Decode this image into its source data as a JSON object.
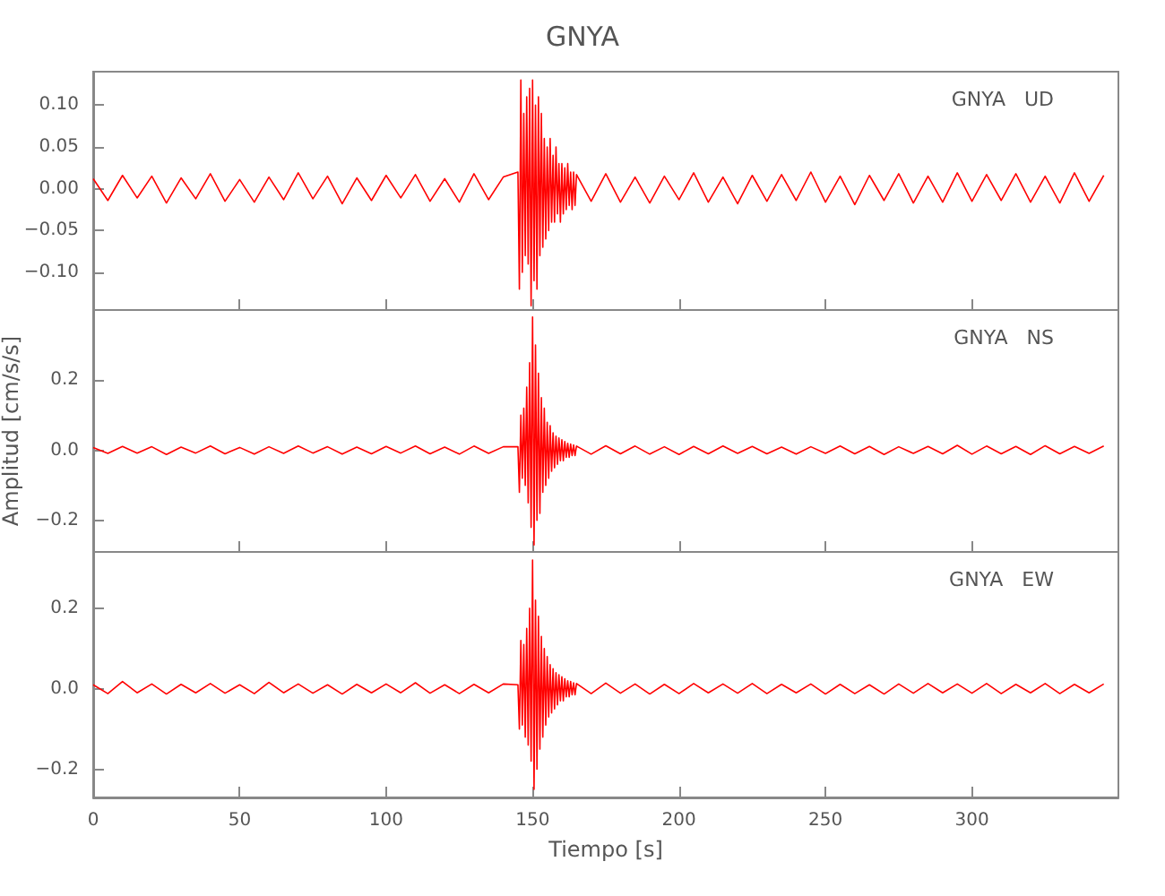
{
  "chart_data": [
    {
      "type": "line",
      "title": "GNYA",
      "annotations": [
        "GNYA   UD"
      ],
      "xlim": [
        0,
        350
      ],
      "ylim": [
        -0.145,
        0.14
      ],
      "yticks": [
        {
          "value": -0.1,
          "label": "−0.10"
        },
        {
          "value": -0.05,
          "label": "−0.05"
        },
        {
          "value": 0,
          "label": "0.00"
        },
        {
          "value": 0.05,
          "label": "0.05"
        },
        {
          "value": 0.1,
          "label": "0.10"
        }
      ],
      "xticks": [
        0,
        50,
        100,
        150,
        200,
        250,
        300
      ],
      "tick_labels": "y",
      "grid": false,
      "marker": "none",
      "line_style": "solid",
      "x": [
        0,
        5,
        10,
        15,
        20,
        25,
        30,
        35,
        40,
        45,
        50,
        55,
        60,
        65,
        70,
        75,
        80,
        85,
        90,
        95,
        100,
        105,
        110,
        115,
        120,
        125,
        130,
        135,
        140,
        145,
        145.5,
        146,
        146.5,
        147,
        147.5,
        148,
        148.5,
        149,
        149.5,
        150,
        150.5,
        151,
        151.5,
        152,
        152.5,
        153,
        153.5,
        154,
        154.5,
        155,
        155.5,
        156,
        156.5,
        157,
        157.5,
        158,
        158.5,
        159,
        159.5,
        160,
        160.5,
        161,
        161.5,
        162,
        162.5,
        163,
        163.5,
        164,
        164.5,
        165,
        170,
        175,
        180,
        185,
        190,
        195,
        200,
        205,
        210,
        215,
        220,
        225,
        230,
        235,
        240,
        245,
        250,
        255,
        260,
        265,
        270,
        275,
        280,
        285,
        290,
        295,
        300,
        305,
        310,
        315,
        320,
        325,
        330,
        335,
        340,
        345
      ],
      "series": [
        {
          "color": "#ff0000",
          "values": [
            0.012,
            -0.014,
            0.016,
            -0.011,
            0.015,
            -0.017,
            0.013,
            -0.012,
            0.018,
            -0.015,
            0.011,
            -0.016,
            0.014,
            -0.013,
            0.019,
            -0.012,
            0.015,
            -0.018,
            0.013,
            -0.014,
            0.016,
            -0.011,
            0.017,
            -0.015,
            0.012,
            -0.016,
            0.018,
            -0.013,
            0.014,
            0.02,
            -0.12,
            0.13,
            -0.1,
            0.09,
            -0.08,
            0.11,
            -0.09,
            0.12,
            -0.14,
            0.13,
            -0.11,
            0.1,
            -0.12,
            0.11,
            -0.08,
            0.09,
            -0.07,
            0.06,
            -0.06,
            0.05,
            -0.05,
            0.06,
            -0.04,
            0.04,
            -0.04,
            0.05,
            -0.03,
            0.03,
            -0.04,
            0.03,
            -0.03,
            0.025,
            -0.025,
            0.03,
            -0.02,
            0.02,
            -0.025,
            0.02,
            -0.02,
            0.017,
            -0.015,
            0.018,
            -0.016,
            0.014,
            -0.017,
            0.015,
            -0.013,
            0.019,
            -0.016,
            0.014,
            -0.018,
            0.016,
            -0.015,
            0.017,
            -0.014,
            0.02,
            -0.016,
            0.015,
            -0.019,
            0.016,
            -0.014,
            0.018,
            -0.017,
            0.015,
            -0.016,
            0.019,
            -0.015,
            0.017,
            -0.014,
            0.018,
            -0.016,
            0.015,
            -0.017,
            0.019,
            -0.015,
            0.016
          ]
        }
      ]
    },
    {
      "type": "line",
      "ylabel": "Amplitud [cm/s/s]",
      "annotations": [
        "GNYA   NS"
      ],
      "xlim": [
        0,
        350
      ],
      "ylim": [
        -0.29,
        0.4
      ],
      "yticks": [
        {
          "value": -0.2,
          "label": "−0.2"
        },
        {
          "value": 0,
          "label": "0.0"
        },
        {
          "value": 0.2,
          "label": "0.2"
        }
      ],
      "xticks": [
        0,
        50,
        100,
        150,
        200,
        250,
        300
      ],
      "tick_labels": "y",
      "grid": false,
      "marker": "none",
      "line_style": "solid",
      "x": [
        0,
        5,
        10,
        15,
        20,
        25,
        30,
        35,
        40,
        45,
        50,
        55,
        60,
        65,
        70,
        75,
        80,
        85,
        90,
        95,
        100,
        105,
        110,
        115,
        120,
        125,
        130,
        135,
        140,
        145,
        145.5,
        146,
        146.5,
        147,
        147.5,
        148,
        148.5,
        149,
        149.5,
        150,
        150.5,
        151,
        151.5,
        152,
        152.5,
        153,
        153.5,
        154,
        154.5,
        155,
        155.5,
        156,
        156.5,
        157,
        157.5,
        158,
        158.5,
        159,
        159.5,
        160,
        160.5,
        161,
        161.5,
        162,
        162.5,
        163,
        163.5,
        164,
        164.5,
        165,
        170,
        175,
        180,
        185,
        190,
        195,
        200,
        205,
        210,
        215,
        220,
        225,
        230,
        235,
        240,
        245,
        250,
        255,
        260,
        265,
        270,
        275,
        280,
        285,
        290,
        295,
        300,
        305,
        310,
        315,
        320,
        325,
        330,
        335,
        340,
        345
      ],
      "series": [
        {
          "color": "#ff0000",
          "values": [
            0.008,
            -0.009,
            0.011,
            -0.008,
            0.01,
            -0.012,
            0.009,
            -0.008,
            0.012,
            -0.01,
            0.008,
            -0.011,
            0.01,
            -0.009,
            0.012,
            -0.008,
            0.01,
            -0.011,
            0.009,
            -0.01,
            0.011,
            -0.008,
            0.012,
            -0.01,
            0.009,
            -0.011,
            0.012,
            -0.009,
            0.01,
            0.01,
            -0.12,
            0.1,
            -0.08,
            0.12,
            -0.1,
            0.18,
            -0.15,
            0.25,
            -0.22,
            0.38,
            -0.27,
            0.3,
            -0.2,
            0.22,
            -0.18,
            0.15,
            -0.12,
            0.12,
            -0.1,
            0.08,
            -0.08,
            0.07,
            -0.06,
            0.05,
            -0.05,
            0.04,
            -0.04,
            0.035,
            -0.03,
            0.03,
            -0.03,
            0.025,
            -0.02,
            0.02,
            -0.02,
            0.018,
            -0.015,
            0.015,
            -0.015,
            0.012,
            -0.011,
            0.013,
            -0.01,
            0.012,
            -0.011,
            0.01,
            -0.012,
            0.011,
            -0.01,
            0.012,
            -0.009,
            0.011,
            -0.01,
            0.009,
            -0.011,
            0.01,
            -0.009,
            0.012,
            -0.01,
            0.011,
            -0.012,
            0.01,
            -0.009,
            0.011,
            -0.01,
            0.014,
            -0.011,
            0.012,
            -0.01,
            0.011,
            -0.012,
            0.013,
            -0.01,
            0.011,
            -0.009,
            0.012
          ]
        }
      ]
    },
    {
      "type": "line",
      "xlabel": "Tiempo [s]",
      "annotations": [
        "GNYA   EW"
      ],
      "xlim": [
        0,
        350
      ],
      "ylim": [
        -0.27,
        0.34
      ],
      "yticks": [
        {
          "value": -0.2,
          "label": "−0.2"
        },
        {
          "value": 0,
          "label": "0.0"
        },
        {
          "value": 0.2,
          "label": "0.2"
        }
      ],
      "xticks": [
        0,
        50,
        100,
        150,
        200,
        250,
        300
      ],
      "grid": false,
      "marker": "none",
      "line_style": "solid",
      "x": [
        0,
        5,
        10,
        15,
        20,
        25,
        30,
        35,
        40,
        45,
        50,
        55,
        60,
        65,
        70,
        75,
        80,
        85,
        90,
        95,
        100,
        105,
        110,
        115,
        120,
        125,
        130,
        135,
        140,
        145,
        145.5,
        146,
        146.5,
        147,
        147.5,
        148,
        148.5,
        149,
        149.5,
        150,
        150.5,
        151,
        151.5,
        152,
        152.5,
        153,
        153.5,
        154,
        154.5,
        155,
        155.5,
        156,
        156.5,
        157,
        157.5,
        158,
        158.5,
        159,
        159.5,
        160,
        160.5,
        161,
        161.5,
        162,
        162.5,
        163,
        163.5,
        164,
        164.5,
        165,
        170,
        175,
        180,
        185,
        190,
        195,
        200,
        205,
        210,
        215,
        220,
        225,
        230,
        235,
        240,
        245,
        250,
        255,
        260,
        265,
        270,
        275,
        280,
        285,
        290,
        295,
        300,
        305,
        310,
        315,
        320,
        325,
        330,
        335,
        340,
        345
      ],
      "series": [
        {
          "color": "#ff0000",
          "values": [
            0.01,
            -0.012,
            0.018,
            -0.01,
            0.012,
            -0.013,
            0.011,
            -0.01,
            0.013,
            -0.011,
            0.01,
            -0.012,
            0.016,
            -0.01,
            0.012,
            -0.011,
            0.01,
            -0.013,
            0.011,
            -0.01,
            0.012,
            -0.01,
            0.015,
            -0.011,
            0.01,
            -0.012,
            0.011,
            -0.01,
            0.012,
            0.01,
            -0.1,
            0.12,
            -0.09,
            0.11,
            -0.12,
            0.15,
            -0.14,
            0.2,
            -0.18,
            0.32,
            -0.25,
            0.22,
            -0.2,
            0.18,
            -0.15,
            0.13,
            -0.12,
            0.1,
            -0.09,
            0.08,
            -0.07,
            0.06,
            -0.06,
            0.05,
            -0.05,
            0.04,
            -0.04,
            0.035,
            -0.03,
            0.03,
            -0.03,
            0.025,
            -0.02,
            0.02,
            -0.02,
            0.018,
            -0.015,
            0.015,
            -0.015,
            0.013,
            -0.012,
            0.014,
            -0.011,
            0.012,
            -0.013,
            0.011,
            -0.012,
            0.013,
            -0.01,
            0.012,
            -0.011,
            0.013,
            -0.012,
            0.011,
            -0.01,
            0.012,
            -0.013,
            0.011,
            -0.012,
            0.01,
            -0.013,
            0.012,
            -0.011,
            0.013,
            -0.01,
            0.012,
            -0.011,
            0.013,
            -0.012,
            0.011,
            -0.01,
            0.013,
            -0.012,
            0.011,
            -0.01,
            0.012
          ]
        }
      ]
    }
  ]
}
